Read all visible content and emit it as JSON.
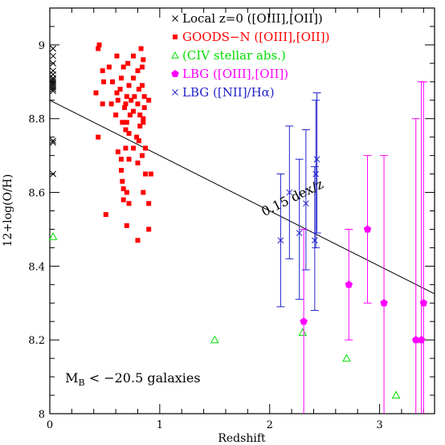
{
  "chart_data": {
    "type": "scatter",
    "title": "",
    "xlabel": "Redshift",
    "ylabel": "12+log(O/H)",
    "xlim": [
      0,
      3.5
    ],
    "ylim": [
      8.0,
      9.1
    ],
    "x_ticks": [
      0,
      1,
      2,
      3
    ],
    "x_tick_labels": [
      "0",
      "1",
      "2",
      "3"
    ],
    "y_ticks": [
      8.0,
      8.2,
      8.4,
      8.6,
      8.8,
      9.0
    ],
    "y_tick_labels": [
      "8",
      "8.2",
      "8.4",
      "8.6",
      "8.8",
      "9"
    ],
    "legend_position": "top-right",
    "legend": [
      {
        "series": "local",
        "label": "Local z=0 ([OIII],[OII])",
        "color": "#000000",
        "marker": "x"
      },
      {
        "series": "goods",
        "label": "GOODS−N ([OIII],[OII])",
        "color": "#ff0000",
        "marker": "square"
      },
      {
        "series": "civ",
        "label": "(CIV stellar abs.)",
        "color": "#00dd00",
        "marker": "open-triangle"
      },
      {
        "series": "lbg_o3",
        "label": "LBG ([OIII],[OII])",
        "color": "#ff00ff",
        "marker": "pentagon"
      },
      {
        "series": "lbg_n2",
        "label": "LBG ([NII]/Hα)",
        "color": "#2222cc",
        "marker": "x"
      }
    ],
    "annotations": [
      {
        "text": "0.15 dex/z",
        "x": 1.95,
        "y": 8.535,
        "rotation_deg": -26
      },
      {
        "text": "M",
        "subscript": "B",
        "rest": " < −20.5 galaxies",
        "x": 0.14,
        "y": 8.085
      }
    ],
    "fit_line": {
      "x": [
        0,
        3.5
      ],
      "y": [
        8.85,
        8.325
      ]
    },
    "series": [
      {
        "id": "local",
        "name": "Local z=0 ([OIII],[OII])",
        "color": "#000000",
        "marker": "x",
        "points": [
          [
            0.03,
            8.99
          ],
          [
            0.03,
            8.97
          ],
          [
            0.03,
            8.95
          ],
          [
            0.03,
            8.93
          ],
          [
            0.03,
            8.92
          ],
          [
            0.03,
            8.91
          ],
          [
            0.03,
            8.905
          ],
          [
            0.03,
            8.9
          ],
          [
            0.03,
            8.895
          ],
          [
            0.03,
            8.89
          ],
          [
            0.03,
            8.885
          ],
          [
            0.03,
            8.88
          ],
          [
            0.03,
            8.875
          ],
          [
            0.03,
            8.74
          ],
          [
            0.03,
            8.735
          ],
          [
            0.03,
            8.65
          ]
        ]
      },
      {
        "id": "goods",
        "name": "GOODS−N ([OIII],[OII])",
        "color": "#ff0000",
        "marker": "square",
        "points": [
          [
            0.44,
            8.99
          ],
          [
            0.45,
            9.0
          ],
          [
            0.83,
            8.99
          ],
          [
            0.61,
            8.97
          ],
          [
            0.76,
            8.97
          ],
          [
            0.71,
            8.95
          ],
          [
            0.54,
            8.94
          ],
          [
            0.67,
            8.94
          ],
          [
            0.84,
            8.94
          ],
          [
            0.85,
            8.96
          ],
          [
            0.48,
            8.93
          ],
          [
            0.8,
            8.93
          ],
          [
            0.76,
            8.91
          ],
          [
            0.49,
            8.9
          ],
          [
            0.57,
            8.9
          ],
          [
            0.65,
            8.91
          ],
          [
            0.42,
            8.87
          ],
          [
            0.64,
            8.88
          ],
          [
            0.72,
            8.89
          ],
          [
            0.81,
            8.88
          ],
          [
            0.84,
            8.89
          ],
          [
            0.61,
            8.87
          ],
          [
            0.7,
            8.86
          ],
          [
            0.77,
            8.86
          ],
          [
            0.86,
            8.86
          ],
          [
            0.48,
            8.84
          ],
          [
            0.56,
            8.84
          ],
          [
            0.62,
            8.85
          ],
          [
            0.69,
            8.84
          ],
          [
            0.74,
            8.85
          ],
          [
            0.8,
            8.84
          ],
          [
            0.68,
            8.83
          ],
          [
            0.76,
            8.82
          ],
          [
            0.86,
            8.83
          ],
          [
            0.9,
            8.85
          ],
          [
            0.6,
            8.81
          ],
          [
            0.73,
            8.81
          ],
          [
            0.82,
            8.81
          ],
          [
            0.85,
            8.8
          ],
          [
            0.66,
            8.79
          ],
          [
            0.7,
            8.79
          ],
          [
            0.85,
            8.79
          ],
          [
            0.82,
            8.78
          ],
          [
            0.69,
            8.77
          ],
          [
            0.72,
            8.76
          ],
          [
            0.79,
            8.75
          ],
          [
            0.44,
            8.75
          ],
          [
            0.81,
            8.74
          ],
          [
            0.87,
            8.72
          ],
          [
            0.69,
            8.72
          ],
          [
            0.76,
            8.72
          ],
          [
            0.62,
            8.71
          ],
          [
            0.84,
            8.7
          ],
          [
            0.65,
            8.69
          ],
          [
            0.72,
            8.69
          ],
          [
            0.8,
            8.68
          ],
          [
            0.65,
            8.66
          ],
          [
            0.92,
            8.65
          ],
          [
            0.87,
            8.65
          ],
          [
            0.66,
            8.63
          ],
          [
            0.67,
            8.61
          ],
          [
            0.7,
            8.6
          ],
          [
            0.85,
            8.6
          ],
          [
            0.67,
            8.58
          ],
          [
            0.72,
            8.57
          ],
          [
            0.9,
            8.57
          ],
          [
            0.51,
            8.54
          ],
          [
            0.7,
            8.51
          ],
          [
            0.9,
            8.5
          ],
          [
            0.8,
            8.47
          ]
        ]
      },
      {
        "id": "civ",
        "name": "(CIV stellar abs.)",
        "color": "#00dd00",
        "marker": "open-triangle",
        "points": [
          [
            0.03,
            8.48
          ],
          [
            1.5,
            8.2
          ],
          [
            2.3,
            8.22
          ],
          [
            2.7,
            8.15
          ],
          [
            3.15,
            8.05
          ]
        ]
      },
      {
        "id": "lbg_o3",
        "name": "LBG ([OIII],[OII])",
        "color": "#ff00ff",
        "marker": "pentagon",
        "points": [
          [
            2.31,
            8.25,
            8.0,
            8.5
          ],
          [
            2.72,
            8.35,
            8.2,
            8.5
          ],
          [
            2.89,
            8.5,
            8.3,
            8.7
          ],
          [
            3.04,
            8.3,
            8.0,
            8.7
          ],
          [
            3.33,
            8.2,
            8.0,
            8.8
          ],
          [
            3.38,
            8.2,
            8.0,
            8.9
          ],
          [
            3.4,
            8.3,
            8.0,
            8.9
          ]
        ]
      },
      {
        "id": "lbg_n2",
        "name": "LBG ([NII]/Hα)",
        "color": "#2222cc",
        "marker": "x",
        "points": [
          [
            2.1,
            8.47,
            8.29,
            8.65
          ],
          [
            2.18,
            8.6,
            8.42,
            8.78
          ],
          [
            2.27,
            8.49,
            8.31,
            8.69
          ],
          [
            2.33,
            8.57,
            8.39,
            8.77
          ],
          [
            2.41,
            8.47,
            8.28,
            8.67
          ],
          [
            2.42,
            8.65,
            8.45,
            8.85
          ],
          [
            2.43,
            8.69,
            8.49,
            8.87
          ]
        ]
      }
    ]
  }
}
